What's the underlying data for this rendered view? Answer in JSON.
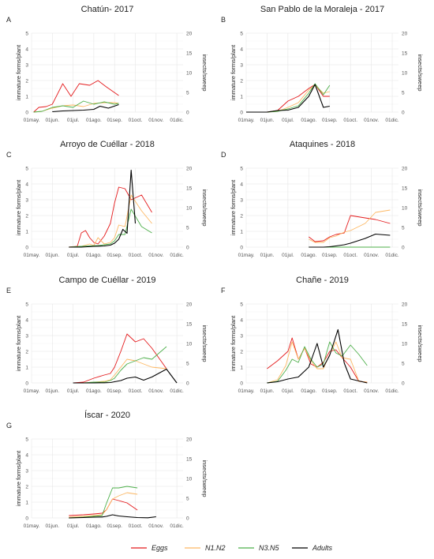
{
  "legend": {
    "entries": [
      {
        "name": "Eggs",
        "color": "#E41A1C"
      },
      {
        "name": "N1.N2",
        "color": "#FDB863"
      },
      {
        "name": "N3.N5",
        "color": "#4DAF4A"
      },
      {
        "name": "Adults",
        "color": "#000000"
      }
    ]
  },
  "axes": {
    "x_ticks": [
      "01may.",
      "01jun.",
      "01jul.",
      "01ago.",
      "01sep.",
      "01oct.",
      "01nov.",
      "01dic."
    ],
    "y_left_ticks": [
      "0",
      "1",
      "2",
      "3",
      "4",
      "5"
    ],
    "y_right_ticks": [
      "0",
      "5",
      "10",
      "15",
      "20"
    ],
    "y_left_label": "immature forms/plant",
    "y_right_label": "insects/sweep"
  },
  "chart_data": [
    {
      "type": "line",
      "letter": "A",
      "title": "Chatún- 2017",
      "xlim": [
        0,
        7.3
      ],
      "ylim_left": [
        0,
        5
      ],
      "ylim_right": [
        0,
        20
      ],
      "grid": true,
      "series": [
        {
          "name": "Eggs",
          "axis": "left",
          "x": [
            0.1,
            0.35,
            0.7,
            1.0,
            1.5,
            1.9,
            2.3,
            2.8,
            3.2,
            3.6,
            4.2
          ],
          "y": [
            0.0,
            0.3,
            0.35,
            0.5,
            1.8,
            1.0,
            1.8,
            1.7,
            2.0,
            1.6,
            1.05
          ]
        },
        {
          "name": "N1.N2",
          "axis": "left",
          "x": [
            0.1,
            0.5,
            1.0,
            1.5,
            2.0,
            2.5,
            3.0,
            3.5,
            4.0,
            4.2
          ],
          "y": [
            0.0,
            0.05,
            0.25,
            0.4,
            0.45,
            0.35,
            0.55,
            0.6,
            0.6,
            0.55
          ]
        },
        {
          "name": "N3.N5",
          "axis": "left",
          "x": [
            0.1,
            0.5,
            1.0,
            1.5,
            2.0,
            2.5,
            3.0,
            3.5,
            4.0,
            4.2
          ],
          "y": [
            0.0,
            0.05,
            0.3,
            0.4,
            0.3,
            0.7,
            0.5,
            0.65,
            0.5,
            0.55
          ]
        },
        {
          "name": "Adults",
          "axis": "right",
          "x": [
            1.0,
            1.5,
            2.0,
            2.5,
            3.0,
            3.3,
            3.7,
            4.2
          ],
          "y": [
            0.1,
            0.3,
            0.4,
            0.5,
            0.7,
            1.5,
            1.0,
            1.9
          ]
        }
      ]
    },
    {
      "type": "line",
      "letter": "B",
      "title": "San Pablo de la Moraleja - 2017",
      "xlim": [
        0,
        7.3
      ],
      "ylim_left": [
        0,
        5
      ],
      "ylim_right": [
        0,
        20
      ],
      "grid": true,
      "series": [
        {
          "name": "Eggs",
          "axis": "left",
          "x": [
            0.0,
            1.0,
            1.5,
            2.0,
            2.5,
            3.0,
            3.3,
            3.7,
            4.0
          ],
          "y": [
            0.0,
            0.0,
            0.1,
            0.7,
            1.0,
            1.5,
            1.75,
            1.0,
            1.0
          ]
        },
        {
          "name": "N1.N2",
          "axis": "left",
          "x": [
            0.0,
            1.0,
            1.5,
            2.0,
            2.5,
            3.0,
            3.3,
            3.7,
            4.0
          ],
          "y": [
            0.0,
            0.0,
            0.05,
            0.3,
            0.6,
            1.4,
            1.7,
            1.2,
            1.3
          ]
        },
        {
          "name": "N3.N5",
          "axis": "left",
          "x": [
            0.0,
            1.0,
            1.5,
            2.0,
            2.5,
            3.0,
            3.3,
            3.7,
            4.0
          ],
          "y": [
            0.0,
            0.0,
            0.05,
            0.2,
            0.4,
            1.2,
            1.8,
            1.1,
            1.7
          ]
        },
        {
          "name": "Adults",
          "axis": "right",
          "x": [
            0.0,
            1.0,
            1.5,
            2.0,
            2.5,
            3.0,
            3.3,
            3.7,
            4.0
          ],
          "y": [
            0.0,
            0.0,
            0.4,
            0.5,
            1.2,
            4.0,
            7.0,
            1.2,
            1.5
          ]
        }
      ]
    },
    {
      "type": "line",
      "letter": "C",
      "title": "Arroyo de Cuéllar - 2018",
      "xlim": [
        0,
        7.3
      ],
      "ylim_left": [
        0,
        5
      ],
      "ylim_right": [
        0,
        20
      ],
      "grid": true,
      "series": [
        {
          "name": "Eggs",
          "axis": "left",
          "x": [
            1.8,
            2.2,
            2.4,
            2.6,
            2.8,
            3.0,
            3.2,
            3.5,
            3.8,
            4.0,
            4.2,
            4.5,
            4.8,
            5.3,
            5.8
          ],
          "y": [
            0.0,
            0.05,
            0.9,
            1.05,
            0.6,
            0.3,
            0.2,
            0.7,
            1.5,
            2.8,
            3.8,
            3.7,
            3.0,
            3.3,
            2.2
          ]
        },
        {
          "name": "N1.N2",
          "axis": "left",
          "x": [
            1.8,
            2.4,
            2.8,
            3.0,
            3.2,
            3.5,
            3.8,
            4.0,
            4.2,
            4.5,
            4.8,
            5.3,
            5.8
          ],
          "y": [
            0.0,
            0.05,
            0.2,
            0.1,
            0.6,
            0.2,
            0.3,
            0.6,
            1.4,
            1.3,
            3.3,
            2.3,
            1.5
          ]
        },
        {
          "name": "N3.N5",
          "axis": "left",
          "x": [
            1.8,
            2.4,
            3.2,
            3.5,
            3.8,
            4.0,
            4.2,
            4.5,
            4.8,
            5.3,
            5.8
          ],
          "y": [
            0.0,
            0.05,
            0.1,
            0.15,
            0.2,
            0.4,
            0.8,
            0.8,
            2.4,
            1.3,
            0.9
          ]
        },
        {
          "name": "Adults",
          "axis": "right",
          "x": [
            1.8,
            2.4,
            3.0,
            3.5,
            3.8,
            4.0,
            4.2,
            4.4,
            4.6,
            4.8,
            5.0
          ],
          "y": [
            0.0,
            0.0,
            0.2,
            0.3,
            0.5,
            1.0,
            2.0,
            4.5,
            3.5,
            19.5,
            6.0
          ]
        }
      ]
    },
    {
      "type": "line",
      "letter": "D",
      "title": "Ataquines - 2018",
      "xlim": [
        0,
        7.3
      ],
      "ylim_left": [
        0,
        5
      ],
      "ylim_right": [
        0,
        20
      ],
      "grid": true,
      "series": [
        {
          "name": "Eggs",
          "axis": "left",
          "x": [
            3.0,
            3.3,
            3.7,
            4.0,
            4.3,
            4.7,
            5.0,
            5.7,
            6.2,
            6.9
          ],
          "y": [
            0.65,
            0.35,
            0.4,
            0.65,
            0.8,
            0.9,
            2.0,
            1.85,
            1.75,
            1.5
          ]
        },
        {
          "name": "N1.N2",
          "axis": "left",
          "x": [
            3.0,
            3.3,
            3.7,
            4.0,
            4.3,
            4.7,
            5.0,
            5.7,
            6.2,
            6.9
          ],
          "y": [
            0.5,
            0.3,
            0.3,
            0.6,
            0.7,
            0.95,
            1.05,
            1.5,
            2.2,
            2.35
          ]
        },
        {
          "name": "N3.N5",
          "axis": "left",
          "x": [
            3.0,
            3.3,
            3.7,
            4.0,
            4.3,
            4.7,
            5.0,
            5.7,
            6.2,
            6.9
          ],
          "y": [
            0.0,
            0.0,
            0.0,
            0.0,
            0.0,
            0.0,
            0.0,
            0.0,
            0.0,
            0.0
          ]
        },
        {
          "name": "Adults",
          "axis": "right",
          "x": [
            3.0,
            3.7,
            4.0,
            4.3,
            4.7,
            5.0,
            5.7,
            6.2,
            6.9
          ],
          "y": [
            0.0,
            0.0,
            0.1,
            0.3,
            0.6,
            1.0,
            2.2,
            3.3,
            3.0
          ]
        }
      ]
    },
    {
      "type": "line",
      "letter": "E",
      "title": "Campo de Cuéllar - 2019",
      "xlim": [
        0,
        7.3
      ],
      "ylim_left": [
        0,
        5
      ],
      "ylim_right": [
        0,
        20
      ],
      "grid": true,
      "series": [
        {
          "name": "Eggs",
          "axis": "left",
          "x": [
            2.0,
            2.5,
            3.0,
            3.5,
            3.8,
            4.0,
            4.3,
            4.6,
            5.0,
            5.4,
            5.8,
            6.5
          ],
          "y": [
            0.0,
            0.05,
            0.3,
            0.5,
            0.6,
            1.0,
            2.0,
            3.1,
            2.6,
            2.8,
            2.2,
            0.9
          ]
        },
        {
          "name": "N1.N2",
          "axis": "left",
          "x": [
            2.0,
            2.5,
            3.0,
            3.5,
            3.8,
            4.0,
            4.3,
            4.6,
            5.0,
            5.4,
            5.8,
            6.5
          ],
          "y": [
            0.0,
            0.0,
            0.05,
            0.1,
            0.2,
            0.5,
            1.0,
            1.5,
            1.4,
            1.2,
            1.0,
            0.9
          ]
        },
        {
          "name": "N3.N5",
          "axis": "left",
          "x": [
            2.0,
            2.5,
            3.0,
            3.5,
            3.8,
            4.0,
            4.3,
            4.6,
            5.0,
            5.4,
            5.8,
            6.5
          ],
          "y": [
            0.0,
            0.0,
            0.05,
            0.05,
            0.15,
            0.3,
            0.8,
            1.2,
            1.4,
            1.6,
            1.5,
            2.3
          ]
        },
        {
          "name": "Adults",
          "axis": "right",
          "x": [
            2.0,
            2.5,
            3.0,
            3.5,
            3.8,
            4.0,
            4.3,
            4.6,
            5.0,
            5.4,
            5.8,
            6.5,
            7.0
          ],
          "y": [
            0.0,
            0.0,
            0.0,
            0.05,
            0.1,
            0.3,
            0.6,
            1.2,
            1.5,
            0.7,
            1.5,
            3.5,
            0.0
          ]
        }
      ]
    },
    {
      "type": "line",
      "letter": "F",
      "title": "Chañe - 2019",
      "xlim": [
        0,
        7.3
      ],
      "ylim_left": [
        0,
        5
      ],
      "ylim_right": [
        0,
        20
      ],
      "grid": true,
      "series": [
        {
          "name": "Eggs",
          "axis": "left",
          "x": [
            1.0,
            1.5,
            2.0,
            2.2,
            2.5,
            2.8,
            3.1,
            3.4,
            3.7,
            4.0,
            4.3,
            4.6,
            5.0,
            5.4,
            5.8
          ],
          "y": [
            0.9,
            1.4,
            2.0,
            2.85,
            1.5,
            2.2,
            1.2,
            1.0,
            1.3,
            2.0,
            2.1,
            1.6,
            1.0,
            0.1,
            0.05
          ]
        },
        {
          "name": "N1.N2",
          "axis": "left",
          "x": [
            1.0,
            1.5,
            1.9,
            2.2,
            2.5,
            2.8,
            3.1,
            3.4,
            3.7,
            4.0,
            4.3,
            4.6,
            5.0,
            5.4,
            5.8
          ],
          "y": [
            0.0,
            0.2,
            1.1,
            2.6,
            1.5,
            2.2,
            1.4,
            0.9,
            0.9,
            1.8,
            2.6,
            1.6,
            1.5,
            0.1,
            0.05
          ]
        },
        {
          "name": "N3.N5",
          "axis": "left",
          "x": [
            1.0,
            1.5,
            1.9,
            2.2,
            2.5,
            2.8,
            3.1,
            3.4,
            3.7,
            4.0,
            4.3,
            4.6,
            5.0,
            5.4,
            5.8
          ],
          "y": [
            0.0,
            0.1,
            0.8,
            1.5,
            1.3,
            2.3,
            1.5,
            1.0,
            1.2,
            2.6,
            1.9,
            1.7,
            2.4,
            1.8,
            1.1
          ]
        },
        {
          "name": "Adults",
          "axis": "right",
          "x": [
            1.0,
            1.5,
            2.0,
            2.5,
            3.0,
            3.4,
            3.7,
            4.0,
            4.4,
            4.7,
            5.0,
            5.4,
            5.8
          ],
          "y": [
            0.0,
            0.3,
            1.0,
            1.5,
            4.0,
            10.0,
            4.0,
            7.0,
            13.5,
            5.0,
            1.0,
            0.5,
            0.0
          ]
        }
      ]
    },
    {
      "type": "line",
      "letter": "G",
      "title": "Íscar - 2020",
      "xlim": [
        0,
        7.3
      ],
      "ylim_left": [
        0,
        5
      ],
      "ylim_right": [
        0,
        20
      ],
      "grid": true,
      "series": [
        {
          "name": "Eggs",
          "axis": "left",
          "x": [
            1.8,
            2.5,
            3.0,
            3.4,
            3.6,
            3.9,
            4.2,
            4.6,
            5.1
          ],
          "y": [
            0.15,
            0.2,
            0.25,
            0.3,
            0.5,
            1.2,
            1.1,
            0.95,
            0.5
          ]
        },
        {
          "name": "N1.N2",
          "axis": "left",
          "x": [
            1.8,
            2.5,
            3.0,
            3.4,
            3.6,
            3.9,
            4.2,
            4.6,
            5.1
          ],
          "y": [
            0.05,
            0.1,
            0.15,
            0.2,
            0.5,
            1.2,
            1.4,
            1.6,
            1.5
          ]
        },
        {
          "name": "N3.N5",
          "axis": "left",
          "x": [
            1.8,
            2.5,
            3.0,
            3.4,
            3.6,
            3.9,
            4.2,
            4.6,
            5.1
          ],
          "y": [
            0.0,
            0.05,
            0.1,
            0.15,
            0.9,
            1.9,
            1.9,
            2.0,
            1.9
          ]
        },
        {
          "name": "Adults",
          "axis": "right",
          "x": [
            1.8,
            2.5,
            3.0,
            3.4,
            3.6,
            3.9,
            4.2,
            4.6,
            5.1,
            5.6,
            6.0
          ],
          "y": [
            0.0,
            0.1,
            0.2,
            0.25,
            0.4,
            0.8,
            0.5,
            0.3,
            0.1,
            0.05,
            0.3
          ]
        }
      ]
    }
  ]
}
